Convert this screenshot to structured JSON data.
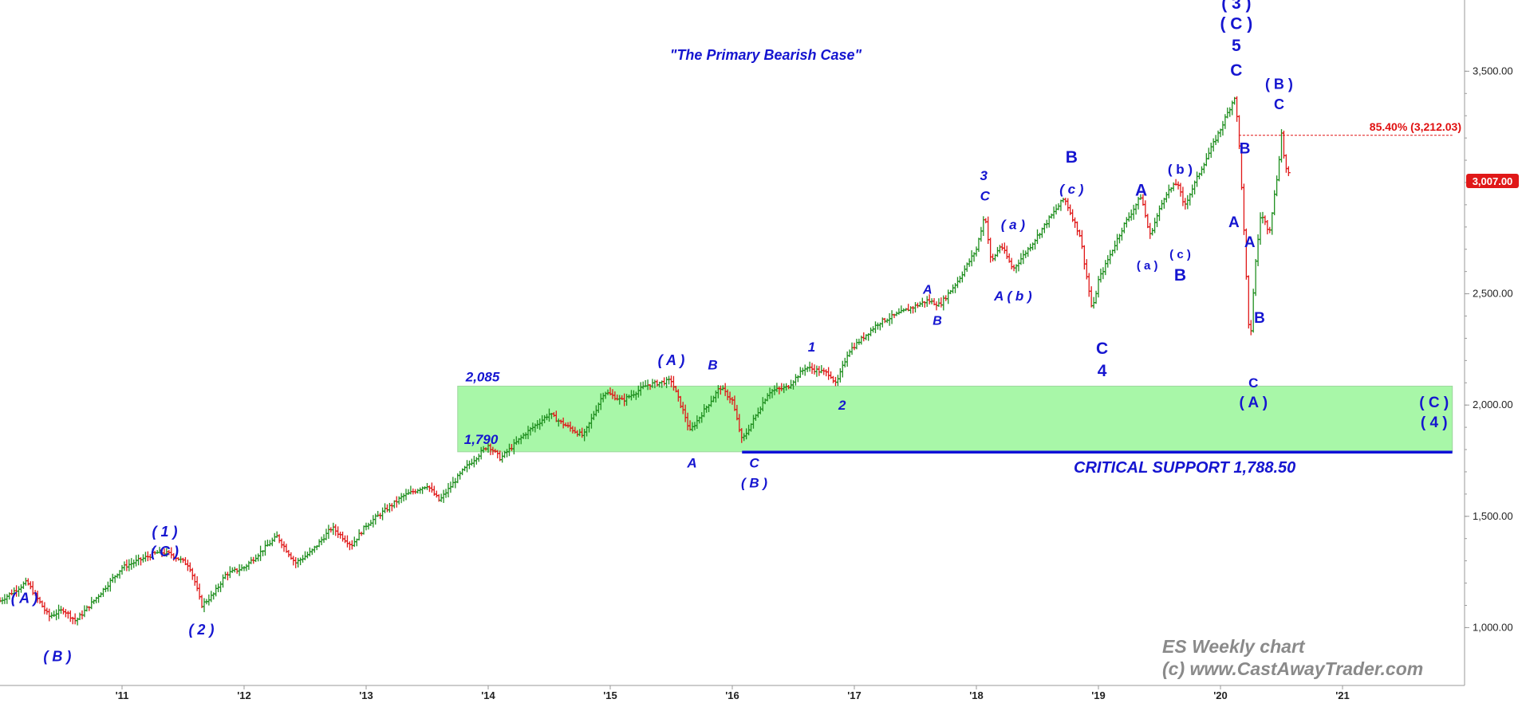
{
  "chart_data": {
    "type": "bar",
    "title": "\"The Primary Bearish Case\"",
    "watermark_lines": [
      "ES Weekly chart",
      "(c) www.CastAwayTrader.com"
    ],
    "x_range": [
      2010.0,
      2022.0
    ],
    "y_range": [
      740,
      3820
    ],
    "x_ticks": [
      {
        "label": "'11",
        "value": 2011.0
      },
      {
        "label": "'12",
        "value": 2012.0
      },
      {
        "label": "'13",
        "value": 2013.0
      },
      {
        "label": "'14",
        "value": 2014.0
      },
      {
        "label": "'15",
        "value": 2015.0
      },
      {
        "label": "'16",
        "value": 2016.0
      },
      {
        "label": "'17",
        "value": 2017.0
      },
      {
        "label": "'18",
        "value": 2018.0
      },
      {
        "label": "'19",
        "value": 2019.0
      },
      {
        "label": "'20",
        "value": 2020.0
      },
      {
        "label": "'21",
        "value": 2021.0
      }
    ],
    "y_ticks": [
      {
        "label": "1,000.00",
        "value": 1000
      },
      {
        "label": "1,500.00",
        "value": 1500
      },
      {
        "label": "2,000.00",
        "value": 2000
      },
      {
        "label": "2,500.00",
        "value": 2500
      },
      {
        "label": "3,500.00",
        "value": 3500
      }
    ],
    "price_path": [
      [
        2010.0,
        1120
      ],
      [
        2010.22,
        1205
      ],
      [
        2010.4,
        1050
      ],
      [
        2010.52,
        1080
      ],
      [
        2010.62,
        1030
      ],
      [
        2010.8,
        1140
      ],
      [
        2011.0,
        1270
      ],
      [
        2011.3,
        1340
      ],
      [
        2011.4,
        1330
      ],
      [
        2011.55,
        1280
      ],
      [
        2011.6,
        1200
      ],
      [
        2011.65,
        1100
      ],
      [
        2011.75,
        1150
      ],
      [
        2011.85,
        1240
      ],
      [
        2012.0,
        1270
      ],
      [
        2012.27,
        1410
      ],
      [
        2012.42,
        1290
      ],
      [
        2012.55,
        1340
      ],
      [
        2012.72,
        1450
      ],
      [
        2012.88,
        1370
      ],
      [
        2013.0,
        1460
      ],
      [
        2013.3,
        1590
      ],
      [
        2013.5,
        1640
      ],
      [
        2013.6,
        1570
      ],
      [
        2013.8,
        1710
      ],
      [
        2014.0,
        1820
      ],
      [
        2014.1,
        1760
      ],
      [
        2014.3,
        1870
      ],
      [
        2014.5,
        1960
      ],
      [
        2014.6,
        1920
      ],
      [
        2014.78,
        1860
      ],
      [
        2014.95,
        2060
      ],
      [
        2015.1,
        2020
      ],
      [
        2015.3,
        2090
      ],
      [
        2015.5,
        2110
      ],
      [
        2015.62,
        1940
      ],
      [
        2015.65,
        1880
      ],
      [
        2015.75,
        1960
      ],
      [
        2015.9,
        2080
      ],
      [
        2016.0,
        2020
      ],
      [
        2016.08,
        1840
      ],
      [
        2016.15,
        1910
      ],
      [
        2016.3,
        2060
      ],
      [
        2016.45,
        2080
      ],
      [
        2016.6,
        2170
      ],
      [
        2016.8,
        2140
      ],
      [
        2016.85,
        2090
      ],
      [
        2016.95,
        2240
      ],
      [
        2017.2,
        2370
      ],
      [
        2017.4,
        2420
      ],
      [
        2017.6,
        2470
      ],
      [
        2017.7,
        2450
      ],
      [
        2017.85,
        2560
      ],
      [
        2018.0,
        2700
      ],
      [
        2018.07,
        2860
      ],
      [
        2018.12,
        2640
      ],
      [
        2018.2,
        2720
      ],
      [
        2018.3,
        2610
      ],
      [
        2018.45,
        2720
      ],
      [
        2018.6,
        2840
      ],
      [
        2018.72,
        2930
      ],
      [
        2018.85,
        2760
      ],
      [
        2018.95,
        2420
      ],
      [
        2019.0,
        2560
      ],
      [
        2019.2,
        2800
      ],
      [
        2019.35,
        2940
      ],
      [
        2019.42,
        2760
      ],
      [
        2019.55,
        2950
      ],
      [
        2019.65,
        3000
      ],
      [
        2019.7,
        2890
      ],
      [
        2019.85,
        3070
      ],
      [
        2020.0,
        3240
      ],
      [
        2020.12,
        3390
      ],
      [
        2020.16,
        3120
      ],
      [
        2020.2,
        2700
      ],
      [
        2020.24,
        2250
      ],
      [
        2020.28,
        2600
      ],
      [
        2020.33,
        2860
      ],
      [
        2020.4,
        2780
      ],
      [
        2020.47,
        3050
      ],
      [
        2020.5,
        3220
      ],
      [
        2020.53,
        3070
      ],
      [
        2020.57,
        3020
      ]
    ],
    "support_zone": {
      "low": 1790,
      "high": 2085,
      "x_start": 2013.75,
      "x_end": 2021.9,
      "low_label": "1,790",
      "high_label": "2,085"
    },
    "support_line": {
      "value": 1788.5,
      "x_start": 2016.08,
      "x_end": 2021.9,
      "label": "CRITICAL SUPPORT 1,788.50"
    },
    "fib_level": {
      "value": 3212.03,
      "x_start": 2020.15,
      "x_end": 2021.9,
      "label": "85.40% (3,212.03)"
    },
    "last_price": {
      "value": 3007.0,
      "label": "3,007.00"
    },
    "colors": {
      "up": "#1f8f1f",
      "down": "#e01818",
      "label": "#1515d0",
      "zone": "#a8f7a8",
      "fib": "#e01010"
    },
    "wave_labels": [
      {
        "text": "( A )",
        "x": 2010.2,
        "y": 1110,
        "size": 18
      },
      {
        "text": "( B )",
        "x": 2010.47,
        "y": 850,
        "size": 18
      },
      {
        "text": "( 1 )",
        "x": 2011.35,
        "y": 1410,
        "size": 18
      },
      {
        "text": "( C )",
        "x": 2011.35,
        "y": 1320,
        "size": 18
      },
      {
        "text": "( 2 )",
        "x": 2011.65,
        "y": 970,
        "size": 18
      },
      {
        "text": "( A )",
        "x": 2015.5,
        "y": 2180,
        "size": 18
      },
      {
        "text": "B",
        "x": 2015.84,
        "y": 2160,
        "size": 17
      },
      {
        "text": "A",
        "x": 2015.67,
        "y": 1720,
        "size": 17
      },
      {
        "text": "C",
        "x": 2016.18,
        "y": 1720,
        "size": 17
      },
      {
        "text": "( B )",
        "x": 2016.18,
        "y": 1630,
        "size": 17
      },
      {
        "text": "1",
        "x": 2016.65,
        "y": 2240,
        "size": 17
      },
      {
        "text": "2",
        "x": 2016.9,
        "y": 1980,
        "size": 17
      },
      {
        "text": "A",
        "x": 2017.6,
        "y": 2500,
        "size": 16
      },
      {
        "text": "B",
        "x": 2017.68,
        "y": 2360,
        "size": 16
      },
      {
        "text": "3",
        "x": 2018.06,
        "y": 3010,
        "size": 17
      },
      {
        "text": "C",
        "x": 2018.07,
        "y": 2920,
        "size": 17
      },
      {
        "text": "( a )",
        "x": 2018.3,
        "y": 2790,
        "size": 17
      },
      {
        "text": "A ( b )",
        "x": 2018.3,
        "y": 2470,
        "size": 17
      },
      {
        "text": "B",
        "x": 2018.78,
        "y": 3090,
        "size": 21,
        "upright": true
      },
      {
        "text": "( c )",
        "x": 2018.78,
        "y": 2950,
        "size": 17
      },
      {
        "text": "C",
        "x": 2019.03,
        "y": 2230,
        "size": 21,
        "upright": true
      },
      {
        "text": "4",
        "x": 2019.03,
        "y": 2130,
        "size": 21,
        "upright": true
      },
      {
        "text": "A",
        "x": 2019.35,
        "y": 2940,
        "size": 21,
        "upright": true
      },
      {
        "text": "( a )",
        "x": 2019.4,
        "y": 2610,
        "size": 15,
        "upright": true
      },
      {
        "text": "( b )",
        "x": 2019.67,
        "y": 3040,
        "size": 17,
        "upright": true
      },
      {
        "text": "( c )",
        "x": 2019.67,
        "y": 2660,
        "size": 15,
        "upright": true
      },
      {
        "text": "B",
        "x": 2019.67,
        "y": 2560,
        "size": 21,
        "upright": true
      },
      {
        "text": "( 3 )",
        "x": 2020.13,
        "y": 3780,
        "size": 21,
        "upright": true
      },
      {
        "text": "( C )",
        "x": 2020.13,
        "y": 3690,
        "size": 21,
        "upright": true
      },
      {
        "text": "5",
        "x": 2020.13,
        "y": 3590,
        "size": 21,
        "upright": true
      },
      {
        "text": "C",
        "x": 2020.13,
        "y": 3480,
        "size": 21,
        "upright": true
      },
      {
        "text": "B",
        "x": 2020.2,
        "y": 3130,
        "size": 19,
        "upright": true
      },
      {
        "text": "A",
        "x": 2020.11,
        "y": 2800,
        "size": 19,
        "upright": true
      },
      {
        "text": "A",
        "x": 2020.24,
        "y": 2710,
        "size": 19,
        "upright": true
      },
      {
        "text": "B",
        "x": 2020.32,
        "y": 2370,
        "size": 19,
        "upright": true
      },
      {
        "text": "C",
        "x": 2020.27,
        "y": 2080,
        "size": 17,
        "upright": true
      },
      {
        "text": "( A )",
        "x": 2020.27,
        "y": 1990,
        "size": 19,
        "upright": true
      },
      {
        "text": "( B )",
        "x": 2020.48,
        "y": 3420,
        "size": 18,
        "upright": true
      },
      {
        "text": "C",
        "x": 2020.48,
        "y": 3330,
        "size": 18,
        "upright": true
      },
      {
        "text": "( C )",
        "x": 2021.75,
        "y": 1990,
        "size": 19,
        "upright": true
      },
      {
        "text": "( 4 )",
        "x": 2021.75,
        "y": 1900,
        "size": 19,
        "upright": true
      }
    ]
  }
}
